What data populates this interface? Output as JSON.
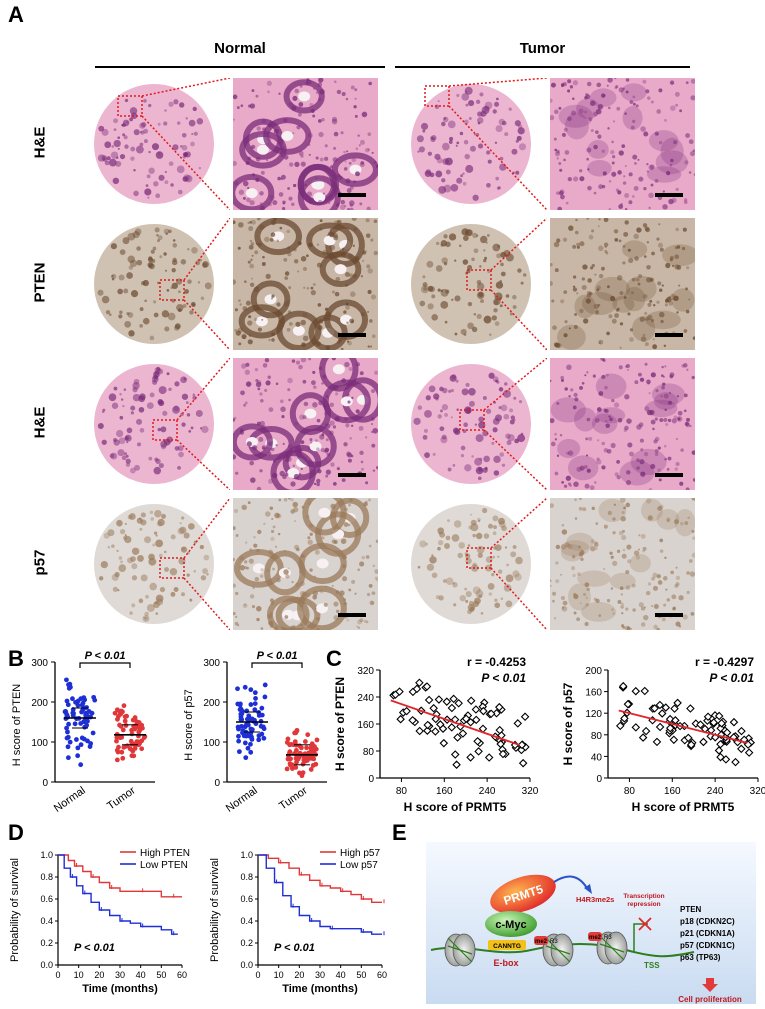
{
  "panels": {
    "a": "A",
    "b": "B",
    "c": "C",
    "d": "D",
    "e": "E"
  },
  "a": {
    "normal_label": "Normal",
    "tumor_label": "Tumor",
    "rows": [
      "H&E",
      "PTEN",
      "H&E",
      "p57"
    ],
    "colors": {
      "he_bg": "#e9a9c8",
      "he_cell": "#7a2c7a",
      "pten_bg": "#c8b7a6",
      "pten_cell": "#6b4a30",
      "p57_bg": "#d9d3cf",
      "p57_cell": "#9a7a5a",
      "zoom_box": "#e11b1b"
    }
  },
  "b": {
    "plots": [
      {
        "ylabel": "H score of PTEN",
        "p": "P < 0.01",
        "yticks": [
          "0",
          "100",
          "200",
          "300"
        ],
        "ymax": 300,
        "groups": [
          {
            "name": "Normal",
            "color": "#1f2fd6",
            "mean": 160
          },
          {
            "name": "Tumor",
            "color": "#e0383a",
            "mean": 118
          }
        ]
      },
      {
        "ylabel": "H score of p57",
        "p": "P < 0.01",
        "yticks": [
          "0",
          "100",
          "200",
          "300"
        ],
        "ymax": 300,
        "groups": [
          {
            "name": "Normal",
            "color": "#1f2fd6",
            "mean": 150
          },
          {
            "name": "Tumor",
            "color": "#e0383a",
            "mean": 68
          }
        ]
      }
    ]
  },
  "c": {
    "plots": [
      {
        "ylabel": "H score of PTEN",
        "xlabel": "H score of PRMT5",
        "r": "r = -0.4253",
        "p": "P < 0.01",
        "xticks": [
          "80",
          "160",
          "240",
          "320"
        ],
        "yticks": [
          "0",
          "80",
          "160",
          "240",
          "320"
        ],
        "xlim": [
          40,
          320
        ],
        "ylim": [
          0,
          320
        ]
      },
      {
        "ylabel": "H score of p57",
        "xlabel": "H score of PRMT5",
        "r": "r = -0.4297",
        "p": "P < 0.01",
        "xticks": [
          "80",
          "160",
          "240",
          "320"
        ],
        "yticks": [
          "0",
          "40",
          "80",
          "120",
          "160",
          "200"
        ],
        "xlim": [
          40,
          320
        ],
        "ylim": [
          0,
          200
        ]
      }
    ]
  },
  "chart_data": [
    {
      "type": "line",
      "panel": "D1",
      "xlabel": "Time (months)",
      "ylabel": "Probability of survival",
      "xlim": [
        0,
        60
      ],
      "ylim": [
        0,
        1
      ],
      "xticks": [
        "0",
        "10",
        "20",
        "30",
        "40",
        "50",
        "60"
      ],
      "yticks": [
        "0.0",
        "0.2",
        "0.4",
        "0.6",
        "0.8",
        "1.0"
      ],
      "legend": "top-right",
      "annotation": "P < 0.01",
      "series": [
        {
          "name": "High PTEN",
          "color": "#e0383a",
          "x": [
            0,
            5,
            8,
            12,
            16,
            20,
            25,
            30,
            40,
            50,
            55,
            60
          ],
          "y": [
            1.0,
            0.95,
            0.9,
            0.85,
            0.8,
            0.75,
            0.7,
            0.67,
            0.67,
            0.62,
            0.62,
            0.62
          ]
        },
        {
          "name": "Low PTEN",
          "color": "#1f2fd6",
          "x": [
            0,
            3,
            6,
            9,
            12,
            16,
            20,
            25,
            30,
            35,
            40,
            50,
            55,
            58
          ],
          "y": [
            1.0,
            0.88,
            0.8,
            0.72,
            0.65,
            0.57,
            0.5,
            0.45,
            0.4,
            0.38,
            0.35,
            0.32,
            0.28,
            0.28
          ]
        }
      ]
    },
    {
      "type": "line",
      "panel": "D2",
      "xlabel": "Time (months)",
      "ylabel": "Probability of survival",
      "xlim": [
        0,
        60
      ],
      "ylim": [
        0,
        1
      ],
      "xticks": [
        "0",
        "10",
        "20",
        "30",
        "40",
        "50",
        "60"
      ],
      "yticks": [
        "0.0",
        "0.2",
        "0.4",
        "0.6",
        "0.8",
        "1.0"
      ],
      "legend": "top-right",
      "annotation": "P < 0.01",
      "series": [
        {
          "name": "High p57",
          "color": "#e0383a",
          "x": [
            0,
            5,
            10,
            15,
            20,
            25,
            30,
            35,
            40,
            45,
            50,
            55,
            60
          ],
          "y": [
            1.0,
            0.97,
            0.93,
            0.88,
            0.82,
            0.77,
            0.72,
            0.7,
            0.67,
            0.64,
            0.6,
            0.57,
            0.57
          ]
        },
        {
          "name": "Low p57",
          "color": "#1f2fd6",
          "x": [
            0,
            4,
            8,
            12,
            16,
            20,
            25,
            30,
            35,
            40,
            50,
            55,
            60
          ],
          "y": [
            1.0,
            0.88,
            0.75,
            0.63,
            0.53,
            0.45,
            0.4,
            0.35,
            0.33,
            0.33,
            0.3,
            0.28,
            0.28
          ]
        }
      ]
    }
  ],
  "e": {
    "prmt5": "PRMT5",
    "cmyc": "c-Myc",
    "canntg": "CANNTG",
    "ebox": "E-box",
    "h4r3": "H4R3me2s",
    "me2": "me2",
    "r3": "R3",
    "tss": "TSS",
    "transcription": "Transcription",
    "repression": "repression",
    "genes": [
      "PTEN",
      "p18 (CDKN2C)",
      "p21 (CDKN1A)",
      "p57 (CDKN1C)",
      "p63 (TP63)"
    ],
    "outcome": "Cell proliferation"
  }
}
